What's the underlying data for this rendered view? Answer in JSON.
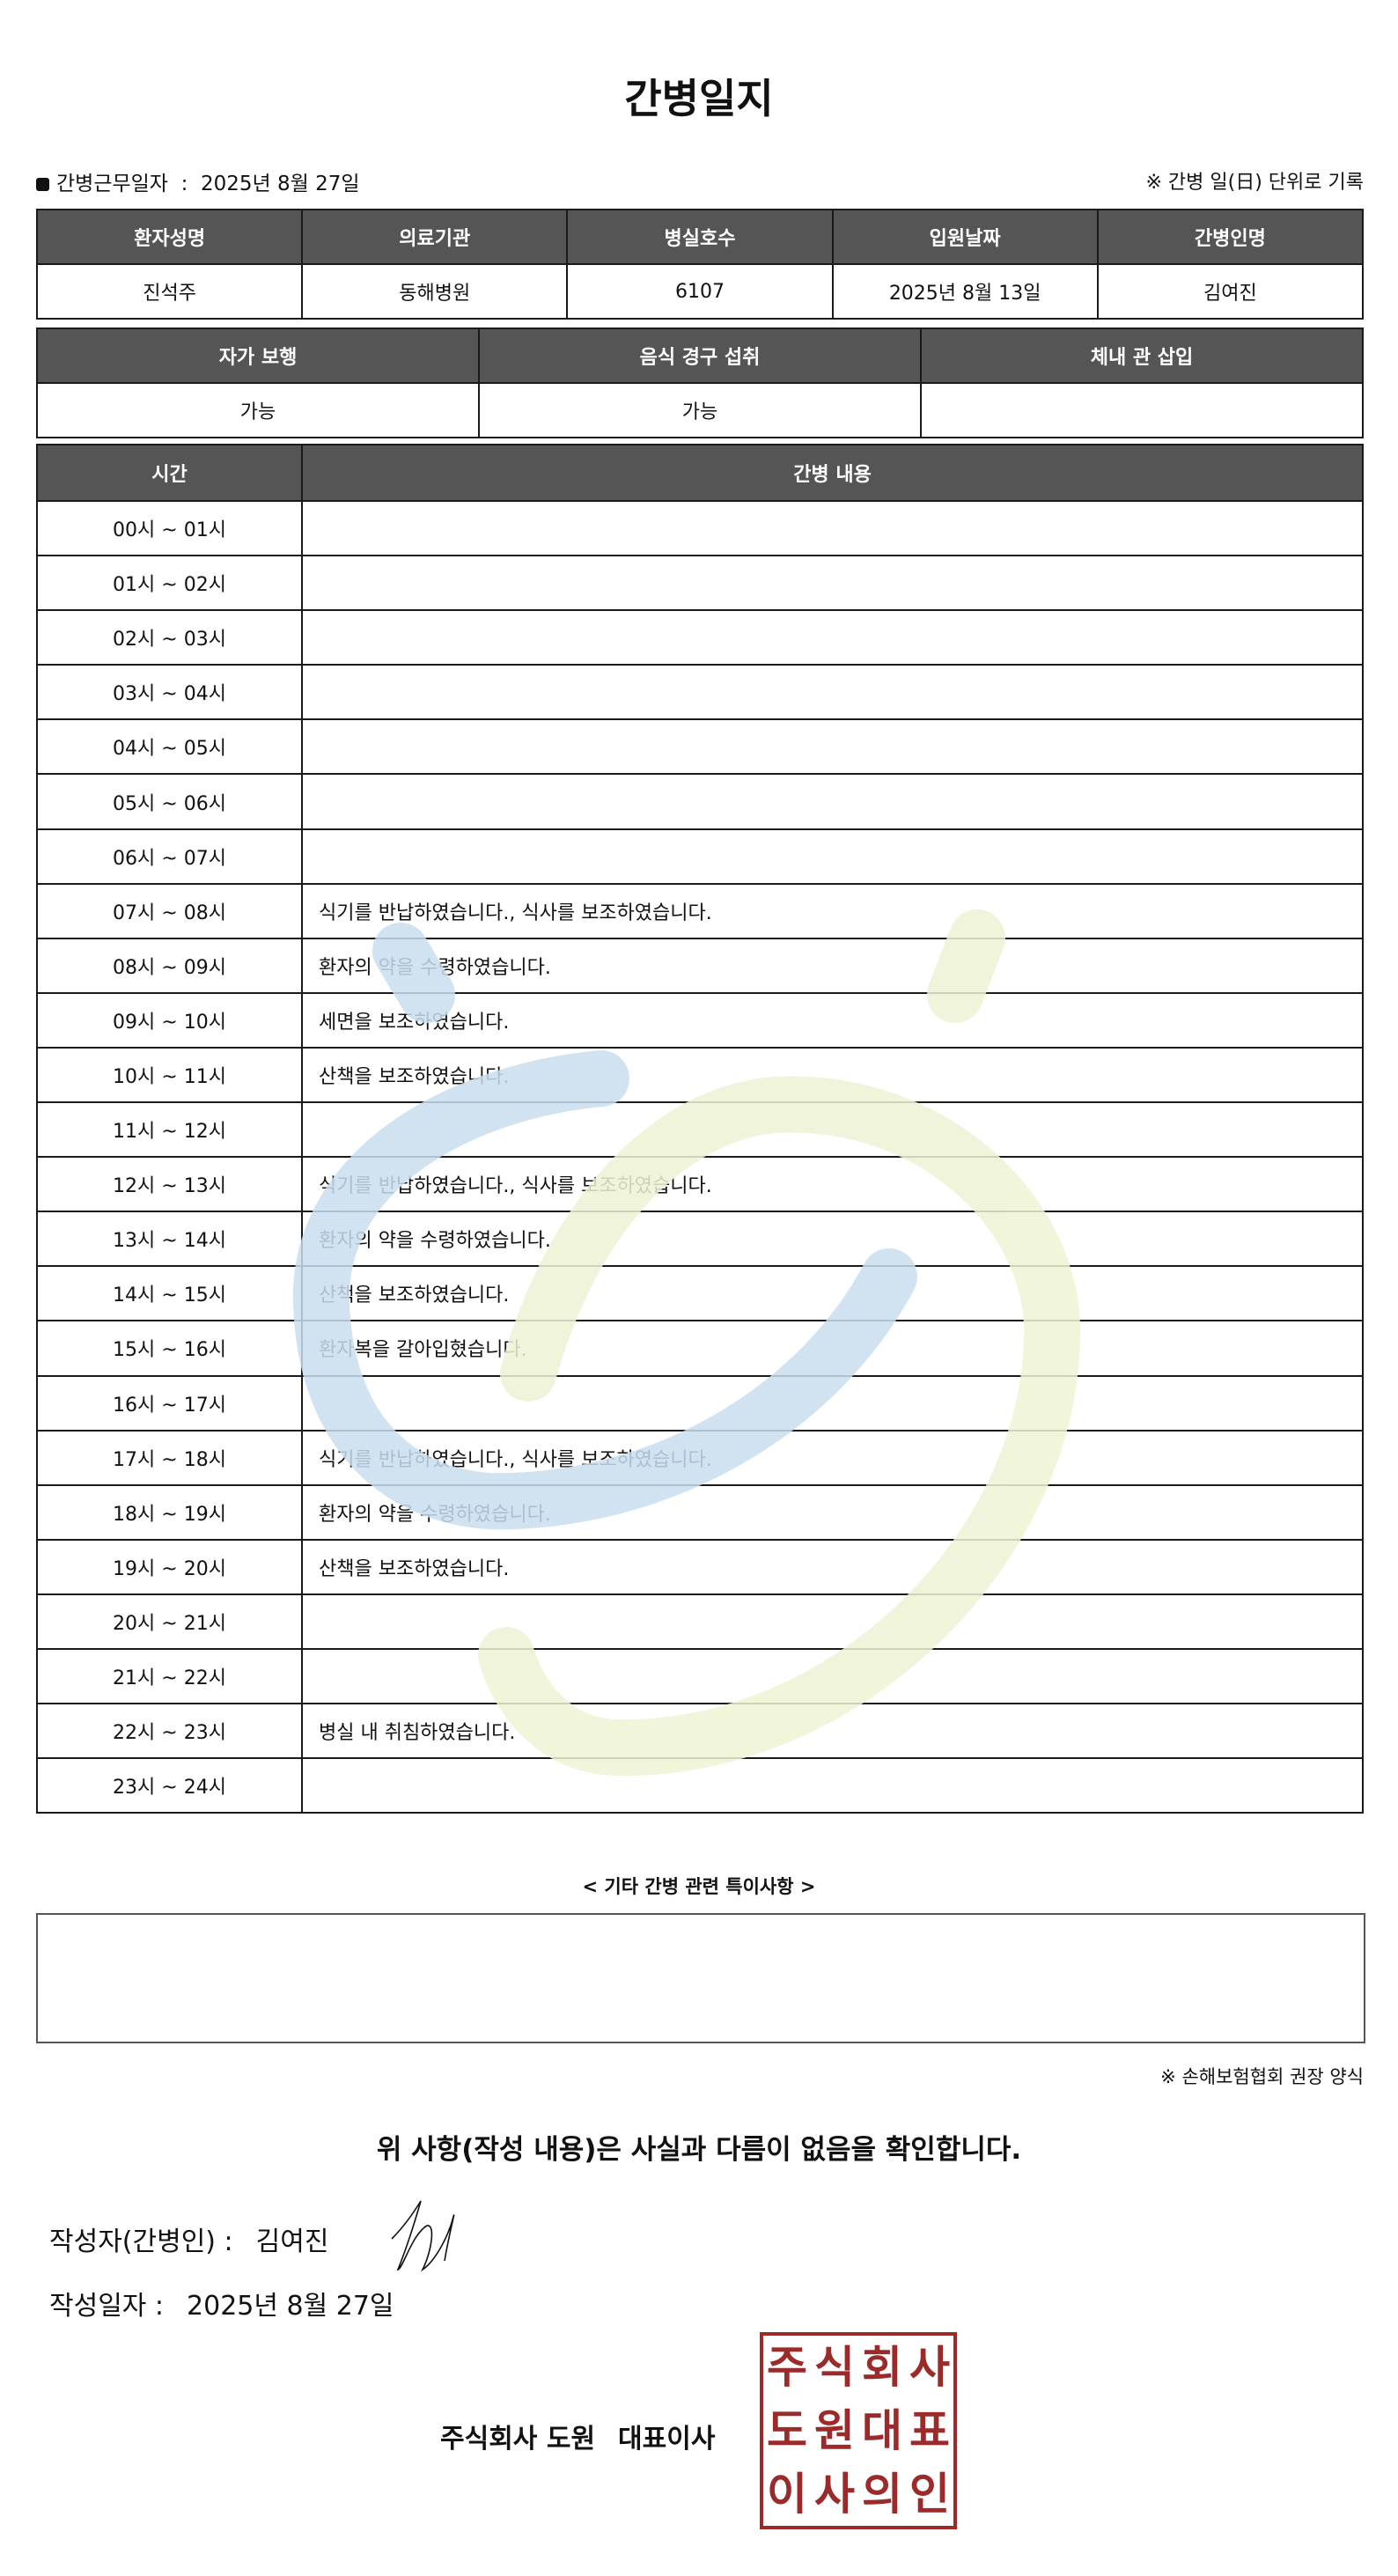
{
  "title": "간병일지",
  "work_date_label": "간병근무일자",
  "work_date": "2025년 8월 27일",
  "unit_note": "※ 간병 일(日) 단위로 기록",
  "info_table": {
    "headers": [
      "환자성명",
      "의료기관",
      "병실호수",
      "입원날짜",
      "간병인명"
    ],
    "values": [
      "진석주",
      "동해병원",
      "6107",
      "2025년 8월 13일",
      "김여진"
    ]
  },
  "status_table": {
    "headers": [
      "자가 보행",
      "음식 경구 섭취",
      "체내 관 삽입"
    ],
    "values": [
      "가능",
      "가능",
      ""
    ]
  },
  "log_table": {
    "headers": [
      "시간",
      "간병 내용"
    ],
    "rows": [
      {
        "time": "00시 ~ 01시",
        "content": ""
      },
      {
        "time": "01시 ~ 02시",
        "content": ""
      },
      {
        "time": "02시 ~ 03시",
        "content": ""
      },
      {
        "time": "03시 ~ 04시",
        "content": ""
      },
      {
        "time": "04시 ~ 05시",
        "content": ""
      },
      {
        "time": "05시 ~ 06시",
        "content": ""
      },
      {
        "time": "06시 ~ 07시",
        "content": ""
      },
      {
        "time": "07시 ~ 08시",
        "content": "식기를 반납하였습니다., 식사를 보조하였습니다."
      },
      {
        "time": "08시 ~ 09시",
        "content": "환자의 약을 수령하였습니다."
      },
      {
        "time": "09시 ~ 10시",
        "content": "세면을 보조하였습니다."
      },
      {
        "time": "10시 ~ 11시",
        "content": "산책을 보조하였습니다."
      },
      {
        "time": "11시 ~ 12시",
        "content": ""
      },
      {
        "time": "12시 ~ 13시",
        "content": "식기를 반납하였습니다., 식사를 보조하였습니다."
      },
      {
        "time": "13시 ~ 14시",
        "content": "환자의 약을 수령하였습니다."
      },
      {
        "time": "14시 ~ 15시",
        "content": "산책을 보조하였습니다."
      },
      {
        "time": "15시 ~ 16시",
        "content": "환자복을 갈아입혔습니다."
      },
      {
        "time": "16시 ~ 17시",
        "content": ""
      },
      {
        "time": "17시 ~ 18시",
        "content": "식기를 반납하였습니다., 식사를 보조하였습니다."
      },
      {
        "time": "18시 ~ 19시",
        "content": "환자의 약을 수령하였습니다."
      },
      {
        "time": "19시 ~ 20시",
        "content": "산책을 보조하였습니다."
      },
      {
        "time": "20시 ~ 21시",
        "content": ""
      },
      {
        "time": "21시 ~ 22시",
        "content": ""
      },
      {
        "time": "22시 ~ 23시",
        "content": "병실 내 취침하였습니다."
      },
      {
        "time": "23시 ~ 24시",
        "content": ""
      }
    ]
  },
  "notes_label": "< 기타 간병 관련 특이사항 >",
  "notes": "",
  "form_note": "※ 손해보험협회 권장 양식",
  "confirm_statement": "위 사항(작성 내용)은 사실과 다름이 없음을 확인합니다.",
  "writer_label": "작성자(간병인) :",
  "writer_name": "김여진",
  "write_date_label": "작성일자 :",
  "write_date": "2025년 8월 27일",
  "company": "주식회사 도원",
  "ceo_label": "대표이사",
  "seal_text": "주식회사도원대표이사의인",
  "colors": {
    "header_bg": "#555555",
    "seal": "#9b2a2a",
    "watermark_blue": "#c9deef",
    "watermark_green": "#eef3d4"
  }
}
